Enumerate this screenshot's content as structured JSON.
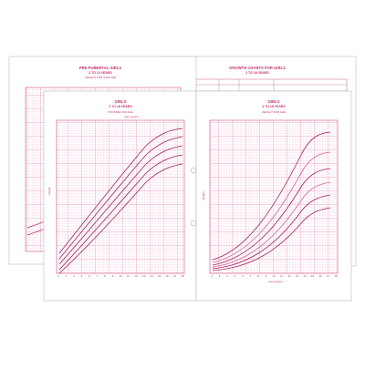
{
  "back_left": {
    "title": "PRE-PUBERTAL GIRLS",
    "subtitle": "2 TO 10 YEARS",
    "chart_name": "WEIGHT FOR STATURE"
  },
  "back_right": {
    "title": "GROWTH CHARTS FOR GIRLS",
    "subtitle": "2 TO 18 YEARS"
  },
  "front_left": {
    "title": "GIRLS",
    "subtitle": "2 TO 18 YEARS",
    "chart_name": "STATURE FOR AGE",
    "x_label": "Age (years)",
    "y_label": "Height",
    "x_ticks": [
      2,
      3,
      4,
      5,
      6,
      7,
      8,
      9,
      10,
      11,
      12,
      13,
      14,
      15,
      16,
      17,
      18
    ]
  },
  "front_right": {
    "title": "GIRLS",
    "subtitle": "2 TO 18 YEARS",
    "chart_name": "WEIGHT FOR AGE",
    "x_label": "Age (years)",
    "y_label": "Weight",
    "x_ticks": [
      2,
      3,
      4,
      5,
      6,
      7,
      8,
      9,
      10,
      11,
      12,
      13,
      14,
      15,
      16,
      17,
      18
    ]
  }
}
